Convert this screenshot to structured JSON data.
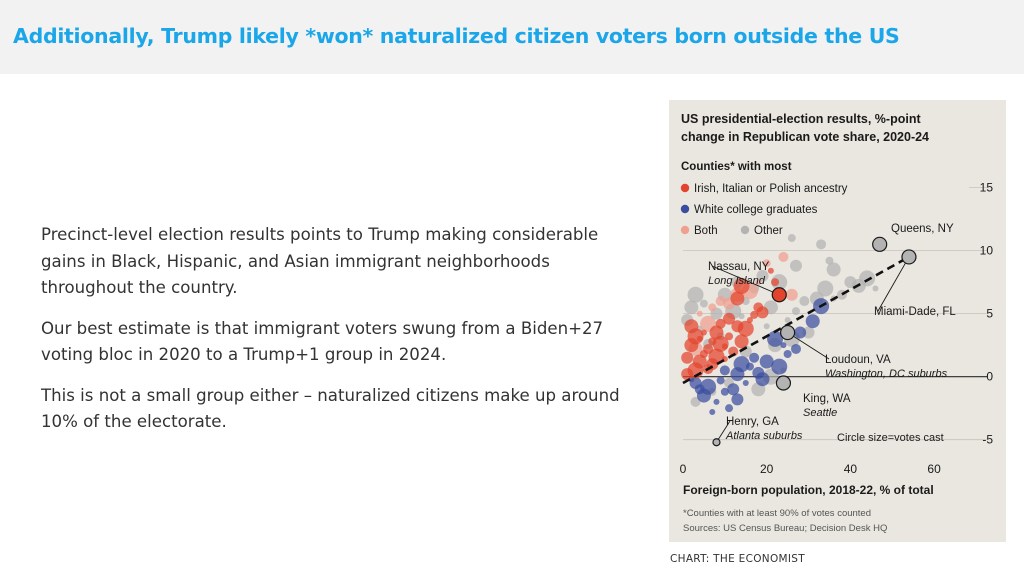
{
  "header": {
    "headline": "Additionally, Trump likely *won* naturalized citizen voters born outside the US"
  },
  "body": {
    "paragraphs": [
      "Precinct-level election results points to Trump making considerable gains in Black, Hispanic, and Asian immigrant neighborhoods throughout the country.",
      "Our best estimate is that immigrant voters swung from a Biden+27 voting bloc in 2020 to a Trump+1 group in 2024.",
      "This is not a small group either – naturalized citizens make up around 10% of the electorate."
    ]
  },
  "credit": "CHART: THE ECONOMIST",
  "chart_data": {
    "type": "scatter",
    "title": "US presidential-election results, %-point change in Republican vote share, 2020-24",
    "xlabel": "Foreign-born population, 2018-22, % of total",
    "ylabel": "",
    "xlim": [
      0,
      65
    ],
    "ylim": [
      -5.5,
      16
    ],
    "xticks": [
      0,
      20,
      40,
      60
    ],
    "yticks": [
      15,
      10,
      5,
      0,
      -5
    ],
    "grid": true,
    "trendline": {
      "x": [
        0,
        54
      ],
      "y": [
        -0.5,
        9.5
      ]
    },
    "legend": {
      "title": "Counties* with most",
      "position": "top-left",
      "entries": [
        {
          "label": "Irish, Italian or Polish ancestry",
          "color": "#e3442d"
        },
        {
          "label": "White college graduates",
          "color": "#3a4d9f"
        },
        {
          "label": "Both",
          "color": "#f0a090"
        },
        {
          "label": "Other",
          "color": "#b3b3b3"
        }
      ]
    },
    "series": [
      {
        "name": "Irish, Italian or Polish ancestry",
        "color": "#e3442d",
        "points": [
          {
            "x": 1,
            "y": 1.5
          },
          {
            "x": 2,
            "y": 2.5
          },
          {
            "x": 3,
            "y": 0.5
          },
          {
            "x": 4,
            "y": 3
          },
          {
            "x": 5,
            "y": 1.8
          },
          {
            "x": 6,
            "y": 2.2
          },
          {
            "x": 7,
            "y": 1
          },
          {
            "x": 8,
            "y": 3.5
          },
          {
            "x": 9,
            "y": 2.6
          },
          {
            "x": 10,
            "y": 1.4
          },
          {
            "x": 11,
            "y": 3.2
          },
          {
            "x": 12,
            "y": 2
          },
          {
            "x": 13,
            "y": 4
          },
          {
            "x": 14,
            "y": 2.8
          },
          {
            "x": 15,
            "y": 3.8
          },
          {
            "x": 16,
            "y": 4.5
          },
          {
            "x": 17,
            "y": 4.9
          },
          {
            "x": 18,
            "y": 5.5
          },
          {
            "x": 19,
            "y": 5.1
          },
          {
            "x": 2,
            "y": 4
          },
          {
            "x": 3,
            "y": 3.2
          },
          {
            "x": 5,
            "y": 3.5
          },
          {
            "x": 7,
            "y": 2.8
          },
          {
            "x": 9,
            "y": 4.2
          },
          {
            "x": 11,
            "y": 4.6
          },
          {
            "x": 13,
            "y": 6.2
          },
          {
            "x": 14,
            "y": 7.2
          },
          {
            "x": 21,
            "y": 8.4
          },
          {
            "x": 22,
            "y": 7.5
          },
          {
            "x": 6,
            "y": 0.6
          },
          {
            "x": 1,
            "y": 0.2
          },
          {
            "x": 4,
            "y": 1.2
          },
          {
            "x": 8,
            "y": 1.6
          },
          {
            "x": 10,
            "y": 2.4
          }
        ]
      },
      {
        "name": "White college graduates",
        "color": "#3a4d9f",
        "points": [
          {
            "x": 3,
            "y": -0.5
          },
          {
            "x": 5,
            "y": -1.5
          },
          {
            "x": 6,
            "y": -0.8
          },
          {
            "x": 8,
            "y": -2
          },
          {
            "x": 9,
            "y": -0.3
          },
          {
            "x": 10,
            "y": 0.5
          },
          {
            "x": 12,
            "y": -1
          },
          {
            "x": 13,
            "y": 0.2
          },
          {
            "x": 14,
            "y": 1
          },
          {
            "x": 15,
            "y": -0.5
          },
          {
            "x": 16,
            "y": 0.8
          },
          {
            "x": 17,
            "y": 1.5
          },
          {
            "x": 18,
            "y": 0.3
          },
          {
            "x": 20,
            "y": 1.2
          },
          {
            "x": 22,
            "y": 3
          },
          {
            "x": 24,
            "y": 2.5
          },
          {
            "x": 25,
            "y": 1.8
          },
          {
            "x": 27,
            "y": 2.2
          },
          {
            "x": 28,
            "y": 3.5
          },
          {
            "x": 31,
            "y": 4.4
          },
          {
            "x": 33,
            "y": 5.6
          },
          {
            "x": 7,
            "y": -2.8
          },
          {
            "x": 11,
            "y": -2.5
          },
          {
            "x": 4,
            "y": -1
          },
          {
            "x": 13,
            "y": -1.8
          },
          {
            "x": 19,
            "y": -0.2
          },
          {
            "x": 23,
            "y": 0.8
          },
          {
            "x": 2,
            "y": -0.2
          },
          {
            "x": 10,
            "y": -1.2
          }
        ]
      },
      {
        "name": "Both",
        "color": "#f0a090",
        "points": [
          {
            "x": 4,
            "y": 5
          },
          {
            "x": 7,
            "y": 5.5
          },
          {
            "x": 9,
            "y": 6
          },
          {
            "x": 11,
            "y": 5.8
          },
          {
            "x": 13,
            "y": 6.5
          },
          {
            "x": 16,
            "y": 6.8
          },
          {
            "x": 18,
            "y": 7.5
          },
          {
            "x": 20,
            "y": 9
          },
          {
            "x": 24,
            "y": 9.5
          },
          {
            "x": 26,
            "y": 6.5
          },
          {
            "x": 3,
            "y": 2.2
          },
          {
            "x": 6,
            "y": 4.2
          }
        ]
      },
      {
        "name": "Other",
        "color": "#b3b3b3",
        "points": [
          {
            "x": 1,
            "y": 4.5
          },
          {
            "x": 2,
            "y": 5.5
          },
          {
            "x": 3,
            "y": 6.5
          },
          {
            "x": 4,
            "y": 3.8
          },
          {
            "x": 5,
            "y": 5.8
          },
          {
            "x": 6,
            "y": 2.6
          },
          {
            "x": 8,
            "y": 5
          },
          {
            "x": 10,
            "y": 6.5
          },
          {
            "x": 12,
            "y": 5.2
          },
          {
            "x": 14,
            "y": 4.8
          },
          {
            "x": 15,
            "y": 6
          },
          {
            "x": 17,
            "y": 7
          },
          {
            "x": 19,
            "y": 8
          },
          {
            "x": 21,
            "y": 5.5
          },
          {
            "x": 23,
            "y": 7.5
          },
          {
            "x": 25,
            "y": 4.5
          },
          {
            "x": 27,
            "y": 5.2
          },
          {
            "x": 29,
            "y": 6
          },
          {
            "x": 30,
            "y": 3.5
          },
          {
            "x": 32,
            "y": 6.2
          },
          {
            "x": 34,
            "y": 7
          },
          {
            "x": 36,
            "y": 6.2
          },
          {
            "x": 35,
            "y": 9.2
          },
          {
            "x": 38,
            "y": 6.5
          },
          {
            "x": 40,
            "y": 7.5
          },
          {
            "x": 42,
            "y": 7.2
          },
          {
            "x": 44,
            "y": 7.8
          },
          {
            "x": 46,
            "y": 7
          },
          {
            "x": 26,
            "y": 11
          },
          {
            "x": 33,
            "y": 10.5
          },
          {
            "x": 27,
            "y": 8.8
          },
          {
            "x": 22,
            "y": 2.5
          },
          {
            "x": 26,
            "y": 3
          },
          {
            "x": 20,
            "y": 4
          },
          {
            "x": 9,
            "y": 3.2
          },
          {
            "x": 11,
            "y": -0.5
          },
          {
            "x": 15,
            "y": 2
          },
          {
            "x": 18,
            "y": -1
          },
          {
            "x": 21,
            "y": 0
          },
          {
            "x": 24,
            "y": 0.5
          },
          {
            "x": 7,
            "y": -1.2
          },
          {
            "x": 3,
            "y": -2
          },
          {
            "x": 13,
            "y": 7.5
          },
          {
            "x": 36,
            "y": 8.5
          }
        ]
      }
    ],
    "labelled_counties": [
      {
        "name": "Queens, NY",
        "x": 47,
        "y": 10.5,
        "color": "#b3b3b3"
      },
      {
        "name": "Miami-Dade, FL",
        "x": 54,
        "y": 9.5,
        "color": "#b3b3b3"
      },
      {
        "name": "Nassau, NY",
        "sub": "Long Island",
        "x": 23,
        "y": 6.5,
        "color": "#e3442d"
      },
      {
        "name": "Loudoun, VA",
        "sub": "Washington, DC suburbs",
        "x": 25,
        "y": 3.5,
        "color": "#b3b3b3"
      },
      {
        "name": "King, WA",
        "sub": "Seattle",
        "x": 24,
        "y": -0.5,
        "color": "#b3b3b3"
      },
      {
        "name": "Henry, GA",
        "sub": "Atlanta suburbs",
        "x": 8,
        "y": -5.2,
        "color": "#b3b3b3"
      }
    ],
    "annotations": [
      "Circle size=votes cast"
    ],
    "footnotes": [
      "*Counties with at least 90% of votes counted",
      "Sources: US Census Bureau; Decision Desk HQ"
    ]
  }
}
